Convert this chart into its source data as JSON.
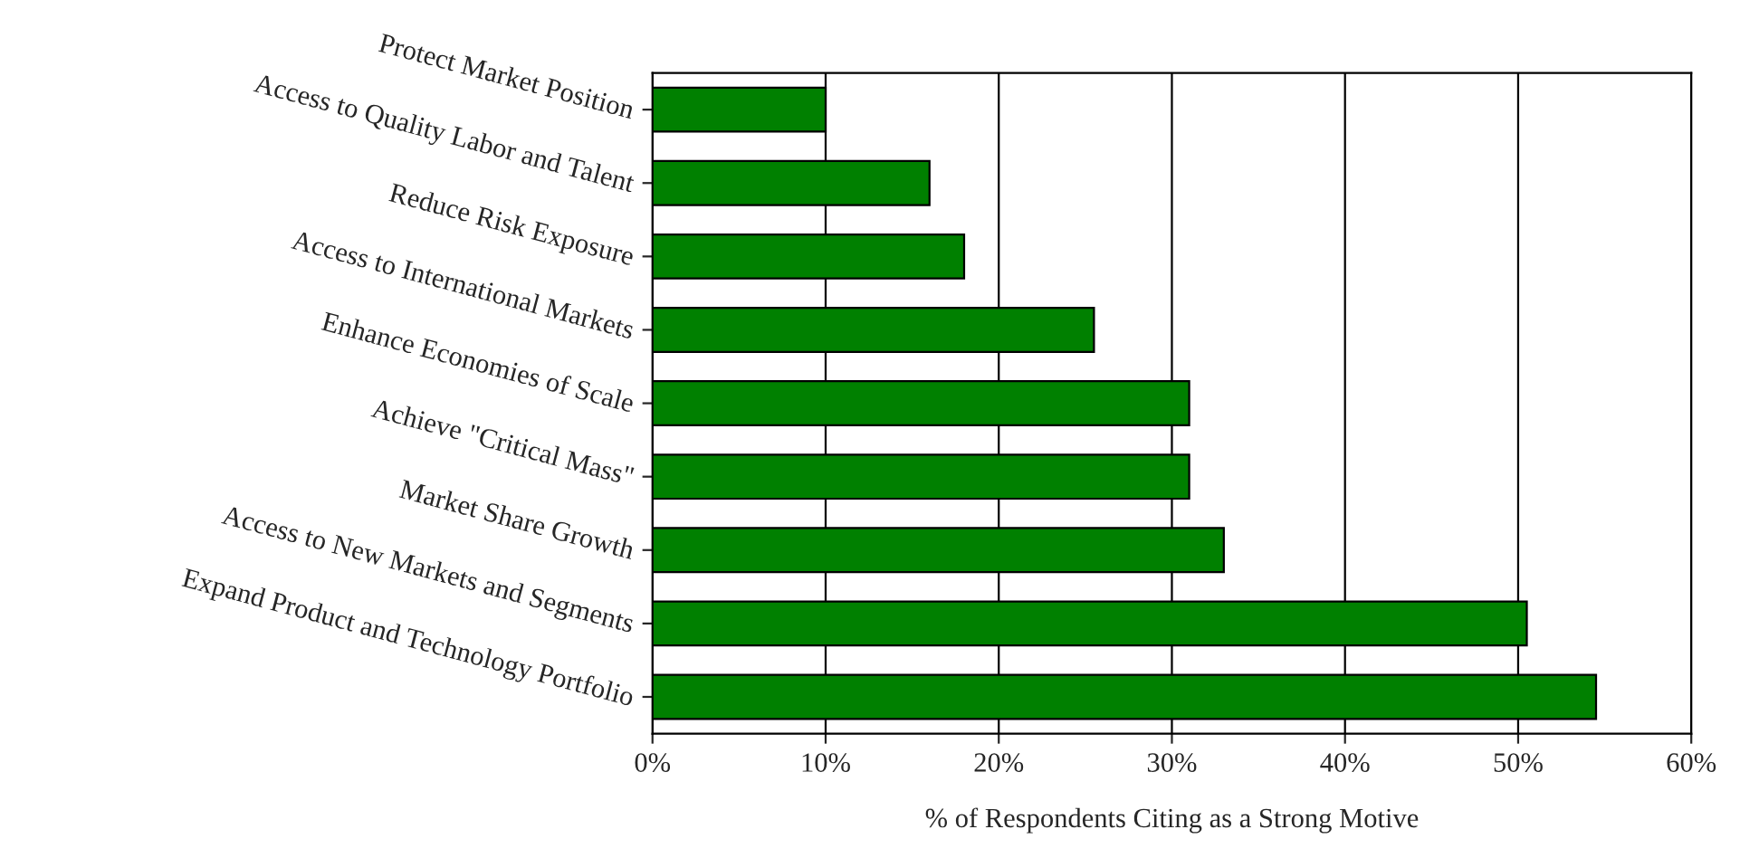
{
  "chart_data": {
    "type": "bar",
    "orientation": "horizontal",
    "xlabel": "% of Respondents Citing as a Strong Motive",
    "categories": [
      "Protect Market Position",
      "Access to Quality Labor and Talent",
      "Reduce Risk Exposure",
      "Access to International Markets",
      "Enhance Economies of Scale",
      "Achieve \"Critical Mass\"",
      "Market Share Growth",
      "Access to New Markets and Segments",
      "Expand Product and Technology Portfolio"
    ],
    "values": [
      10,
      16,
      18,
      25.5,
      31,
      31,
      33,
      50.5,
      54.5
    ],
    "color": "#008000",
    "xlim": [
      0,
      60
    ],
    "xticks": [
      {
        "value": 0,
        "label": "0%"
      },
      {
        "value": 10,
        "label": "10%"
      },
      {
        "value": 20,
        "label": "20%"
      },
      {
        "value": 30,
        "label": "30%"
      },
      {
        "value": 40,
        "label": "40%"
      },
      {
        "value": 50,
        "label": "50%"
      },
      {
        "value": 60,
        "label": "60%"
      }
    ],
    "grid": "x"
  }
}
